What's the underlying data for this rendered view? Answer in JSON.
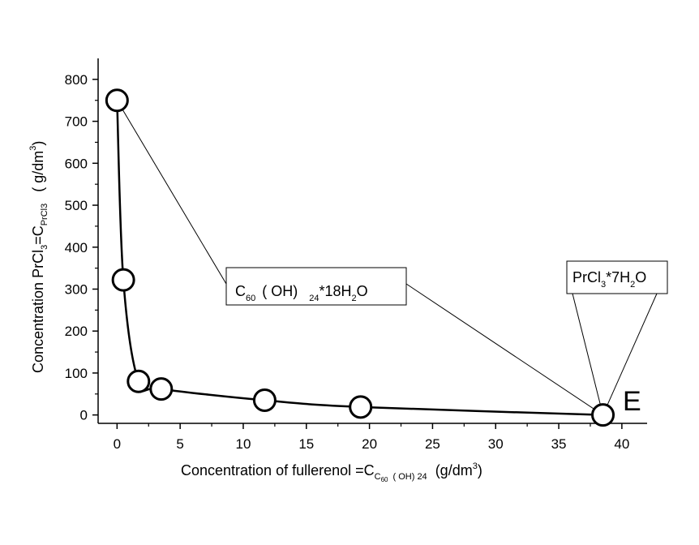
{
  "chart_data": {
    "type": "scatter",
    "xlim": [
      -1.5,
      42
    ],
    "ylim": [
      -20,
      850
    ],
    "x_ticks": [
      0,
      5,
      10,
      15,
      20,
      25,
      30,
      35,
      40
    ],
    "y_ticks": [
      0,
      100,
      200,
      300,
      400,
      500,
      600,
      700,
      800
    ],
    "x_tick_labels": [
      "0",
      "5",
      "10",
      "15",
      "20",
      "25",
      "30",
      "35",
      "40"
    ],
    "y_tick_labels": [
      "0",
      "100",
      "200",
      "300",
      "400",
      "500",
      "600",
      "700",
      "800"
    ],
    "grid": false,
    "series": [
      {
        "x": [
          0.0,
          0.5,
          1.7,
          3.5,
          11.7,
          19.3,
          38.5
        ],
        "y": [
          750,
          322,
          80,
          62,
          35,
          19,
          0
        ],
        "marker": "open-circle",
        "line": "smooth",
        "color": "#000000"
      }
    ],
    "xlabel": {
      "main": "Concentration of fullerenol =C",
      "sub1": "C",
      "sub2": "60",
      "sub3": "( OH)  24",
      "unit": "(g/dm",
      "sup": "3",
      "close": ")"
    },
    "ylabel": {
      "main": "Concentration PrCl",
      "sub_a": "3",
      "mid": "=C",
      "sub_b": "PrCl3",
      "unit": "( g/dm",
      "sup": "3",
      "close": ")"
    },
    "annotations": {
      "hydrate_box": {
        "c": "C",
        "sub60": "60",
        "oh": "( OH)",
        "sub24": "24",
        "rest": "*18H",
        "sub2": "2",
        "o": "O",
        "targets": [
          [
            0.0,
            750
          ],
          [
            38.5,
            0
          ]
        ]
      },
      "salt_box": {
        "pr": "PrCl",
        "sub3": "3",
        "rest": "*7H",
        "sub2": "2",
        "o": "O",
        "targets": [
          [
            38.5,
            0
          ]
        ]
      },
      "point_label": "E"
    }
  }
}
